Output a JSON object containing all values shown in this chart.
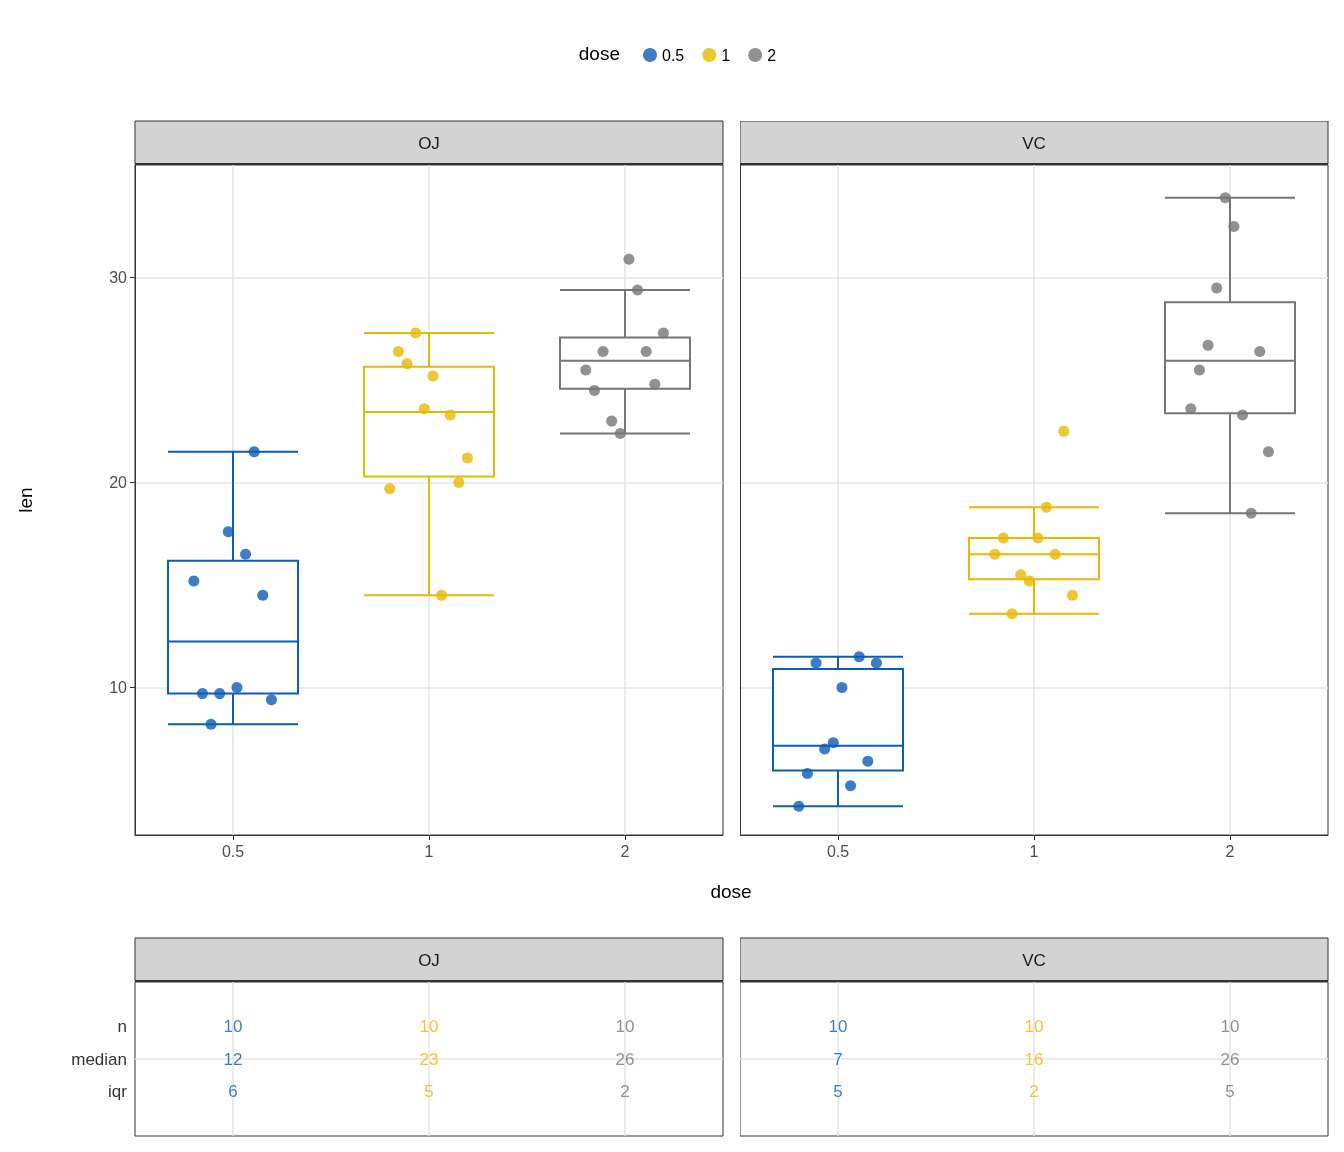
{
  "chart_data": [
    {
      "type": "box",
      "title": "OJ",
      "xlabel": "dose",
      "ylabel": "len",
      "legend_title": "dose",
      "legend": "top",
      "grid": true,
      "categories": [
        "0.5",
        "1",
        "2"
      ],
      "colors": [
        "#0c5db6",
        "#e7b800",
        "#767676"
      ],
      "ylim": [
        2.8,
        35.5
      ],
      "yticks": [
        10,
        20,
        30
      ],
      "boxes": [
        {
          "low": 8.2,
          "q1": 9.7,
          "median": 12.25,
          "q3": 16.18,
          "high": 21.5
        },
        {
          "low": 14.5,
          "q1": 20.3,
          "median": 23.45,
          "q3": 25.65,
          "high": 27.3
        },
        {
          "low": 22.4,
          "q1": 24.58,
          "median": 25.95,
          "q3": 27.08,
          "high": 29.4
        }
      ],
      "series": [
        {
          "type": "scatter",
          "name": "0.5",
          "color": "#0c5db6",
          "x": [
            "0.5",
            "0.5",
            "0.5",
            "0.5",
            "0.5",
            "0.5",
            "0.5",
            "0.5",
            "0.5",
            "0.5"
          ],
          "values": [
            15.2,
            21.5,
            17.6,
            9.7,
            14.5,
            10.0,
            8.2,
            9.4,
            16.5,
            9.7
          ]
        },
        {
          "type": "scatter",
          "name": "1",
          "color": "#e7b800",
          "x": [
            "1",
            "1",
            "1",
            "1",
            "1",
            "1",
            "1",
            "1",
            "1",
            "1"
          ],
          "values": [
            19.7,
            23.3,
            23.6,
            26.4,
            20.0,
            25.2,
            25.8,
            21.2,
            14.5,
            27.3
          ]
        },
        {
          "type": "scatter",
          "name": "2",
          "color": "#767676",
          "x": [
            "2",
            "2",
            "2",
            "2",
            "2",
            "2",
            "2",
            "2",
            "2",
            "2"
          ],
          "values": [
            25.5,
            26.4,
            22.4,
            24.5,
            24.8,
            30.9,
            26.4,
            27.3,
            29.4,
            23.0
          ]
        }
      ]
    },
    {
      "type": "box",
      "title": "VC",
      "grid": true,
      "tick_labels": "x",
      "categories": [
        "0.5",
        "1",
        "2"
      ],
      "colors": [
        "#0c5db6",
        "#e7b800",
        "#767676"
      ],
      "ylim": [
        2.8,
        35.5
      ],
      "yticks": [
        10,
        20,
        30
      ],
      "boxes": [
        {
          "low": 4.2,
          "q1": 5.95,
          "median": 7.15,
          "q3": 10.9,
          "high": 11.5
        },
        {
          "low": 13.6,
          "q1": 15.28,
          "median": 16.5,
          "q3": 17.3,
          "high": 18.8
        },
        {
          "low": 18.5,
          "q1": 23.38,
          "median": 25.95,
          "q3": 28.8,
          "high": 33.9
        }
      ],
      "series": [
        {
          "type": "scatter",
          "color": "#0c5db6",
          "x": [
            "0.5",
            "0.5",
            "0.5",
            "0.5",
            "0.5",
            "0.5",
            "0.5",
            "0.5",
            "0.5",
            "0.5"
          ],
          "values": [
            4.2,
            11.5,
            7.3,
            5.8,
            6.4,
            10.0,
            11.2,
            11.2,
            5.2,
            7.0
          ]
        },
        {
          "type": "scatter",
          "color": "#e7b800",
          "x": [
            "1",
            "1",
            "1",
            "1",
            "1",
            "1",
            "1",
            "1",
            "1",
            "1"
          ],
          "values": [
            16.5,
            16.5,
            15.2,
            17.3,
            22.5,
            17.3,
            13.6,
            14.5,
            18.8,
            15.5
          ]
        },
        {
          "type": "scatter",
          "color": "#767676",
          "x": [
            "2",
            "2",
            "2",
            "2",
            "2",
            "2",
            "2",
            "2",
            "2",
            "2"
          ],
          "values": [
            23.6,
            18.5,
            33.9,
            25.5,
            26.4,
            32.5,
            26.7,
            21.5,
            23.3,
            29.5
          ]
        }
      ]
    },
    {
      "type": "heatmap",
      "title": "OJ",
      "data_labels": true,
      "grid": true,
      "tick_labels": "y",
      "categories": [
        null,
        null,
        null
      ],
      "colors": [
        "#0c5db6",
        "#e7b800",
        "#767676"
      ],
      "y_categories": [
        "n",
        "median",
        "iqr"
      ],
      "cells": [
        [
          10,
          10,
          10
        ],
        [
          12,
          23,
          26
        ],
        [
          6,
          5,
          2
        ]
      ]
    },
    {
      "type": "heatmap",
      "title": "VC",
      "data_labels": true,
      "grid": true,
      "tick_labels": false,
      "categories": [
        null,
        null,
        null
      ],
      "colors": [
        "#0c5db6",
        "#e7b800",
        "#767676"
      ],
      "y_categories": [
        null,
        null,
        null
      ],
      "cells": [
        [
          10,
          10,
          10
        ],
        [
          7,
          16,
          26
        ],
        [
          5,
          2,
          5
        ]
      ]
    }
  ]
}
